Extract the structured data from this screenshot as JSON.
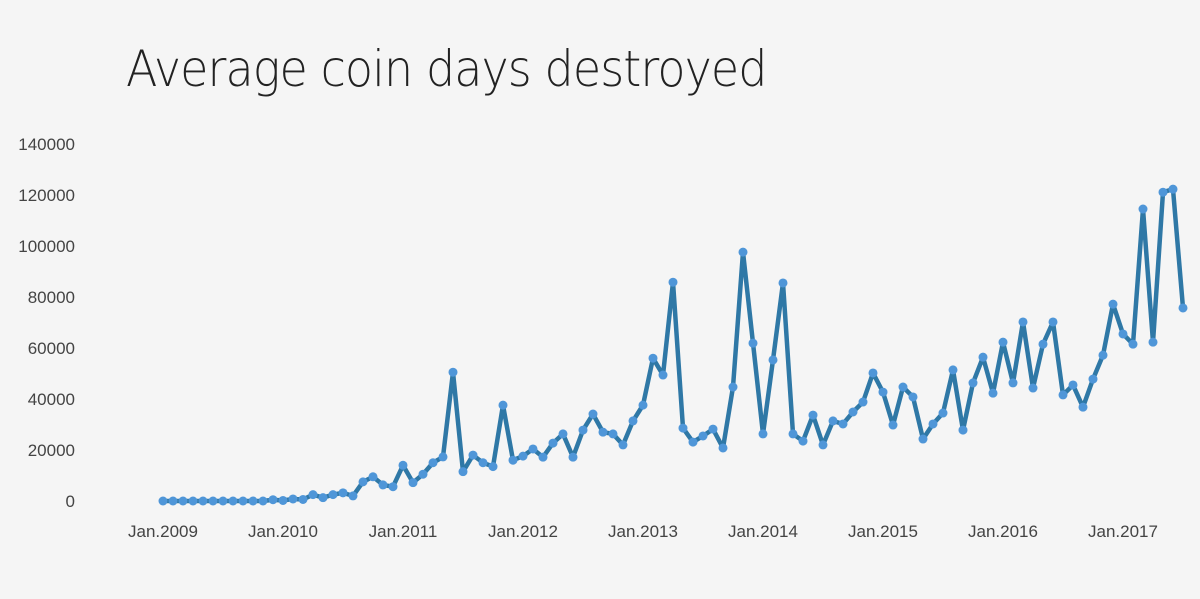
{
  "chart_data": {
    "type": "line",
    "title": "Average coin days destroyed",
    "xlabel": "",
    "ylabel": "",
    "x_start": "2009-01",
    "x_interval": "month",
    "ylim": [
      0,
      140000
    ],
    "yticks": [
      0,
      20000,
      40000,
      60000,
      80000,
      100000,
      120000,
      140000
    ],
    "xticks": [
      "Jan.2009",
      "Jan.2010",
      "Jan.2011",
      "Jan.2012",
      "Jan.2013",
      "Jan.2014",
      "Jan.2015",
      "Jan.2016",
      "Jan.2017"
    ],
    "grid": false,
    "colors": {
      "line": "#2f78a6",
      "marker": "#4f96d8"
    },
    "series": [
      {
        "name": "Average coin days destroyed",
        "values": [
          0,
          0,
          0,
          0,
          0,
          0,
          0,
          0,
          0,
          0,
          0,
          500,
          200,
          800,
          600,
          2500,
          1300,
          2500,
          3200,
          2000,
          7500,
          9500,
          6300,
          5600,
          14000,
          7200,
          10500,
          15000,
          17300,
          50500,
          11500,
          18000,
          15000,
          13500,
          37600,
          16000,
          17600,
          20400,
          17200,
          22700,
          26300,
          17200,
          27800,
          34100,
          27000,
          26300,
          22000,
          31400,
          37600,
          56000,
          49400,
          85800,
          28600,
          23100,
          25500,
          28200,
          20800,
          44700,
          97600,
          61900,
          26300,
          55300,
          85500,
          26300,
          23500,
          33700,
          22000,
          31400,
          30200,
          34900,
          38800,
          50200,
          42700,
          29800,
          44700,
          40800,
          24300,
          30200,
          34500,
          51400,
          27800,
          46300,
          56400,
          42300,
          62300,
          46300,
          70200,
          44300,
          61500,
          70200,
          41600,
          45500,
          36800,
          47800,
          57200,
          77200,
          65500,
          61500,
          114500,
          62300,
          121100,
          122300,
          75700
        ]
      }
    ]
  }
}
